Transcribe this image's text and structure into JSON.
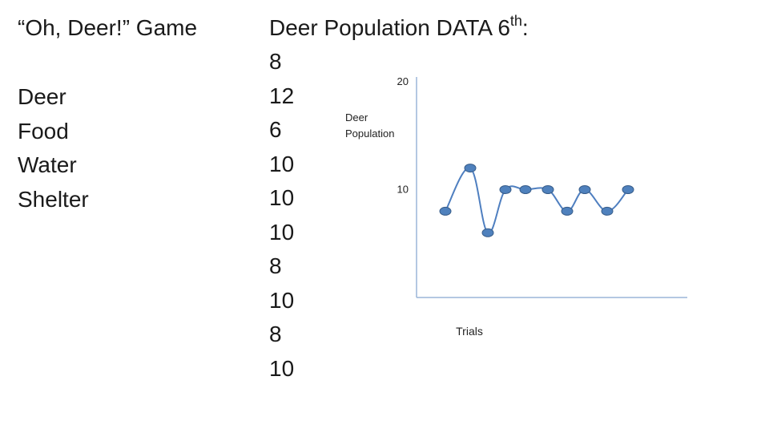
{
  "left_panel": {
    "title": "“Oh, Deer!” Game",
    "items": [
      "Deer",
      "Food",
      "Water",
      "Shelter"
    ]
  },
  "data_panel": {
    "title_main": "Deer Population DATA 6",
    "title_sup": "th",
    "title_end": ":",
    "values": [
      "8",
      "12",
      "6",
      "10",
      "10",
      "10",
      "8",
      "10",
      "8",
      "10"
    ]
  },
  "chart_data": {
    "type": "line",
    "title": "",
    "xlabel": "Trials",
    "ylabel_lines": [
      "Deer",
      "Population"
    ],
    "x": [
      1,
      2,
      3,
      4,
      5,
      6,
      7,
      8,
      9,
      10
    ],
    "series": [
      {
        "values": [
          8,
          12,
          6,
          10,
          10,
          10,
          8,
          10,
          8,
          10
        ]
      }
    ],
    "ylim": [
      0,
      20
    ],
    "yticks": [
      "10",
      "20"
    ],
    "grid": false,
    "line_color": "#4f7fc0",
    "marker_color": "#4f81bd",
    "marker_edge_color": "#385d8a",
    "axis_color": "#9bb5d8"
  }
}
